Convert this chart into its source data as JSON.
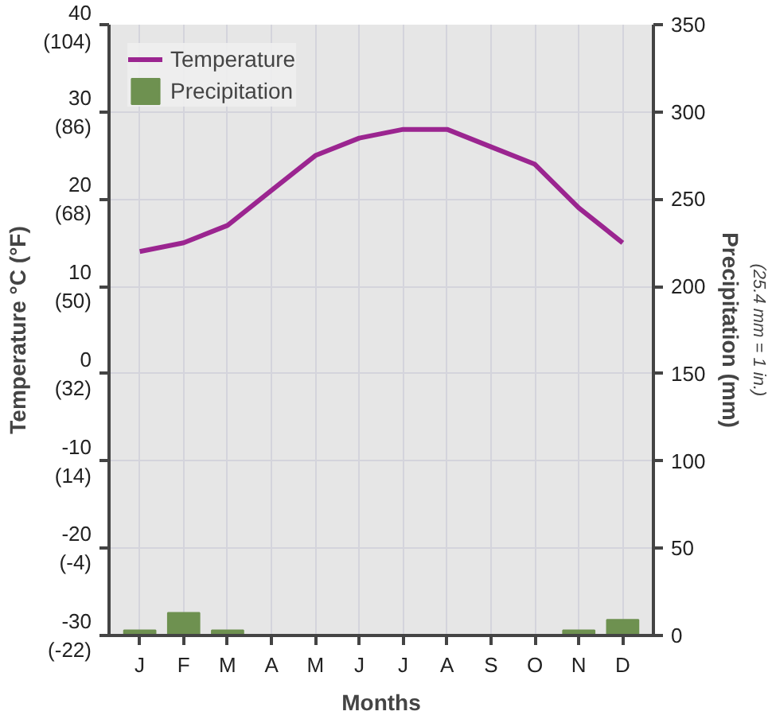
{
  "chart_data": {
    "type": "line",
    "xlabel": "Months",
    "ylabel": "Temperature °C (°F)",
    "y2label": "Precipitation (mm)",
    "annotations": [
      "(25.4 mm = 1 in.)"
    ],
    "categories": [
      "J",
      "F",
      "M",
      "A",
      "M",
      "J",
      "J",
      "A",
      "S",
      "O",
      "N",
      "D"
    ],
    "series": [
      {
        "name": "Temperature",
        "color": "#9b2590",
        "values": [
          14,
          15,
          17,
          21,
          25,
          27,
          28,
          28,
          26,
          24,
          19,
          15
        ]
      },
      {
        "name": "Precipitation",
        "type": "bar",
        "axis": "y2",
        "color": "#6e9150",
        "values": [
          3,
          13,
          3,
          0,
          0,
          0,
          0,
          0,
          0,
          0,
          3,
          9
        ]
      }
    ],
    "ylim": [
      -30,
      40
    ],
    "yticks": [
      -30,
      -20,
      -10,
      0,
      10,
      20,
      30,
      40
    ],
    "y3lim": [
      -22,
      104
    ],
    "y3ticks": [
      {
        "value": -22,
        "label": "(-22)"
      },
      {
        "value": -4,
        "label": "(-4)"
      },
      {
        "value": 14,
        "label": "(14)"
      },
      {
        "value": 32,
        "label": "(32)"
      },
      {
        "value": 50,
        "label": "(50)"
      },
      {
        "value": 68,
        "label": "(68)"
      },
      {
        "value": 86,
        "label": "(86)"
      },
      {
        "value": 104,
        "label": "(104)"
      }
    ],
    "y2lim": [
      0,
      350
    ],
    "y2ticks": [
      0,
      50,
      100,
      150,
      200,
      250,
      300,
      350
    ],
    "grid": true,
    "legend": "top left"
  }
}
